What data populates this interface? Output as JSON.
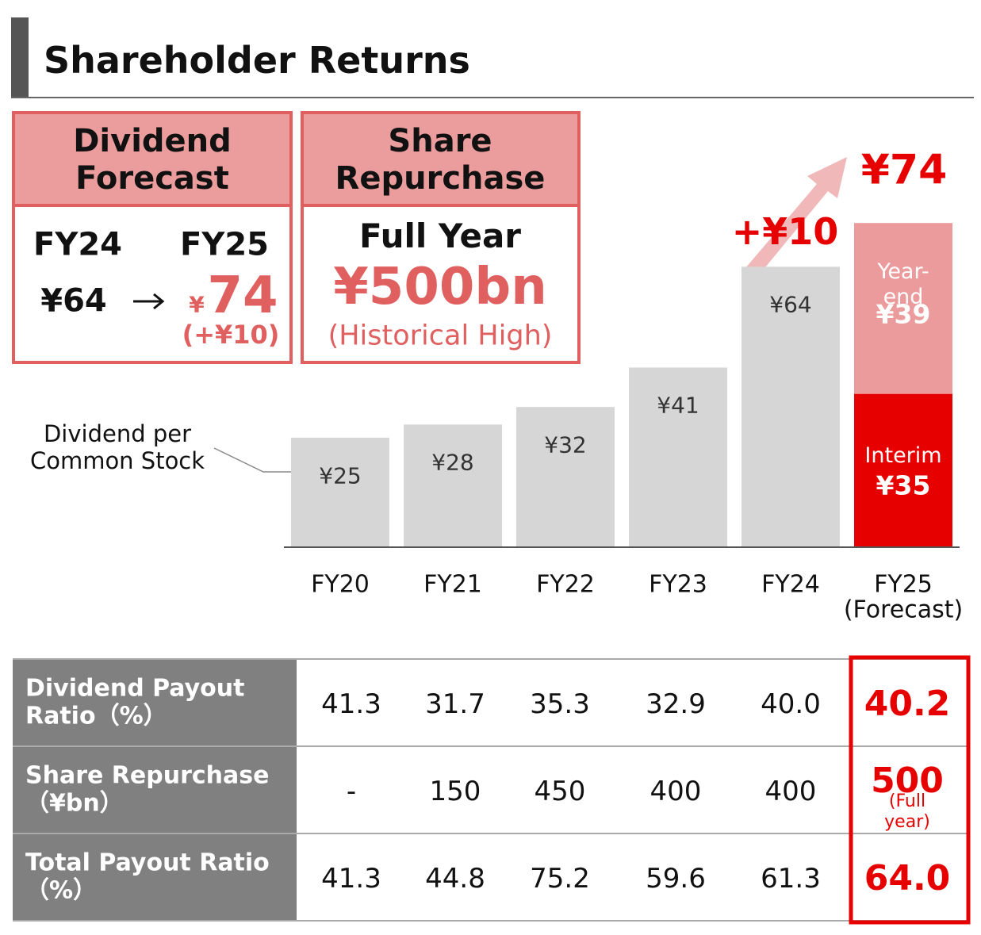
{
  "title": "Shareholder Returns",
  "dividend_forecast": {
    "heading": "Dividend\nForecast",
    "from_year": "FY24",
    "to_year": "FY25",
    "from_value": "¥64",
    "to_currency": "¥",
    "to_value": "74",
    "change": "(+¥10)"
  },
  "share_repurchase": {
    "heading": "Share\nRepurchase",
    "period": "Full Year",
    "amount": "¥500bn",
    "note": "(Historical High)"
  },
  "chart_data": {
    "type": "bar",
    "stacked": true,
    "categories": [
      "FY20",
      "FY21",
      "FY22",
      "FY23",
      "FY24",
      "FY25\n(Forecast)"
    ],
    "ylim": [
      0,
      80
    ],
    "series": [
      {
        "name": "Dividend per\nCommon Stock",
        "color": "#d6d6d6",
        "values": [
          25,
          28,
          32,
          41,
          64,
          null
        ],
        "value_labels": [
          "¥25",
          "¥28",
          "¥32",
          "¥41",
          "¥64",
          null
        ]
      },
      {
        "name": "Interim",
        "color": "#e60000",
        "values": [
          null,
          null,
          null,
          null,
          null,
          35
        ],
        "value_labels": [
          null,
          null,
          null,
          null,
          null,
          "¥35"
        ]
      },
      {
        "name": "Year-end",
        "color": "#eb9b9b",
        "values": [
          null,
          null,
          null,
          null,
          null,
          39
        ],
        "value_labels": [
          null,
          null,
          null,
          null,
          null,
          "¥39"
        ]
      }
    ],
    "annotations": [
      {
        "text": "+¥10"
      },
      {
        "text": "¥74"
      }
    ]
  },
  "table": {
    "rows": [
      {
        "label": "Dividend Payout\nRatio（%）",
        "values": [
          "41.3",
          "31.7",
          "35.3",
          "32.9",
          "40.0",
          "40.2"
        ]
      },
      {
        "label": "Share Repurchase\n（¥bn）",
        "values": [
          "-",
          "150",
          "450",
          "400",
          "400",
          "500"
        ],
        "note": "(Full year)"
      },
      {
        "label": "Total Payout Ratio\n（%）",
        "values": [
          "41.3",
          "44.8",
          "75.2",
          "59.6",
          "61.3",
          "64.0"
        ]
      }
    ]
  }
}
